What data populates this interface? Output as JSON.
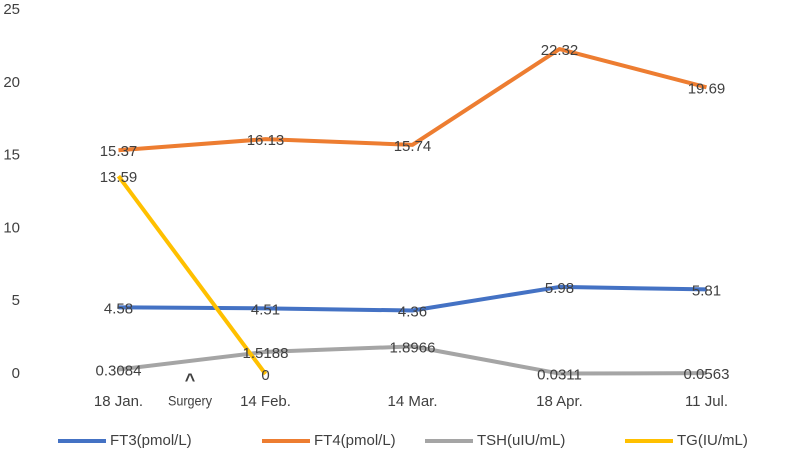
{
  "chart_data": {
    "type": "line",
    "categories": [
      "18 Jan.",
      "14 Feb.",
      "14 Mar.",
      "18 Apr.",
      "11 Jul."
    ],
    "series": [
      {
        "name": "FT3(pmol/L)",
        "color": "#4472c4",
        "values": [
          4.58,
          4.51,
          4.36,
          5.98,
          5.81
        ]
      },
      {
        "name": "FT4(pmol/L)",
        "color": "#ed7d31",
        "values": [
          15.37,
          16.13,
          15.74,
          22.32,
          19.69
        ]
      },
      {
        "name": "TSH(uIU/mL)",
        "color": "#a5a5a5",
        "values": [
          0.3084,
          1.5188,
          1.8966,
          0.0311,
          0.0563
        ]
      },
      {
        "name": "TG(IU/mL)",
        "color": "#ffc000",
        "values": [
          13.59,
          0,
          null,
          null,
          null
        ]
      }
    ],
    "annotations": [
      "^",
      "Surgery"
    ],
    "ylim": [
      0,
      25
    ],
    "yticks": [
      0,
      5,
      10,
      15,
      20,
      25
    ],
    "grid": false,
    "legend": "bottom"
  }
}
